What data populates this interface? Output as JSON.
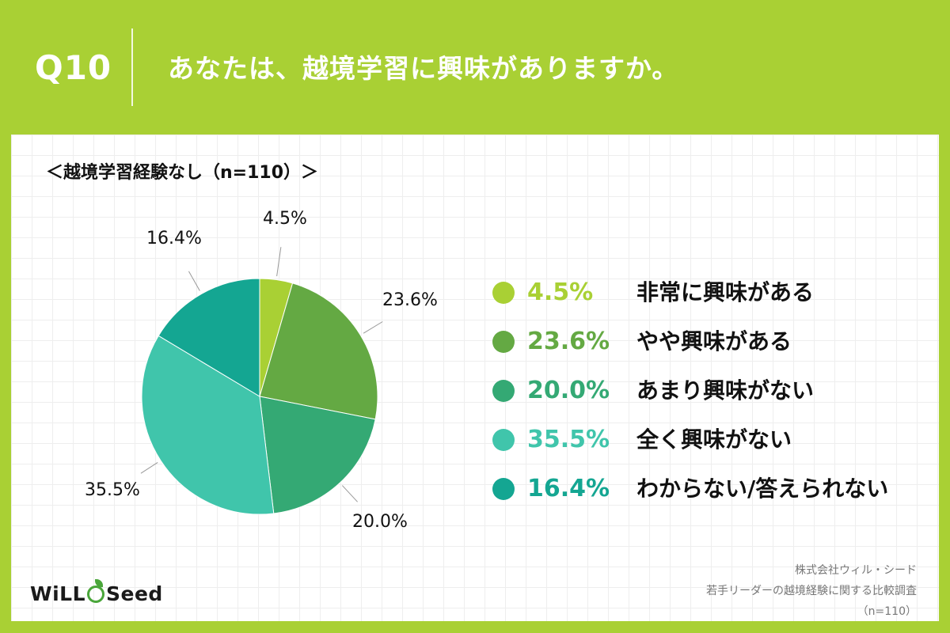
{
  "header": {
    "question_number": "Q10",
    "question_text": "あなたは、越境学習に興味がありますか。"
  },
  "subtitle": "＜越境学習経験なし（n=110）＞",
  "chart_data": {
    "type": "pie",
    "title": "",
    "slices": [
      {
        "label": "非常に興味がある",
        "value": 4.5,
        "display": "4.5%",
        "color": "#a9d034"
      },
      {
        "label": "やや興味がある",
        "value": 23.6,
        "display": "23.6%",
        "color": "#64a943"
      },
      {
        "label": "あまり興味がない",
        "value": 20.0,
        "display": "20.0%",
        "color": "#34a974"
      },
      {
        "label": "全く興味がない",
        "value": 35.5,
        "display": "35.5%",
        "color": "#40c5ab"
      },
      {
        "label": "わからない/答えられない",
        "value": 16.4,
        "display": "16.4%",
        "color": "#14a692"
      }
    ],
    "legend_position": "right"
  },
  "brand": {
    "logo_text_left": "WiLL",
    "logo_text_right": "Seed"
  },
  "source": {
    "company": "株式会社ウィル・シード",
    "survey": "若手リーダーの越境経験に関する比較調査",
    "sample": "（n=110）"
  }
}
